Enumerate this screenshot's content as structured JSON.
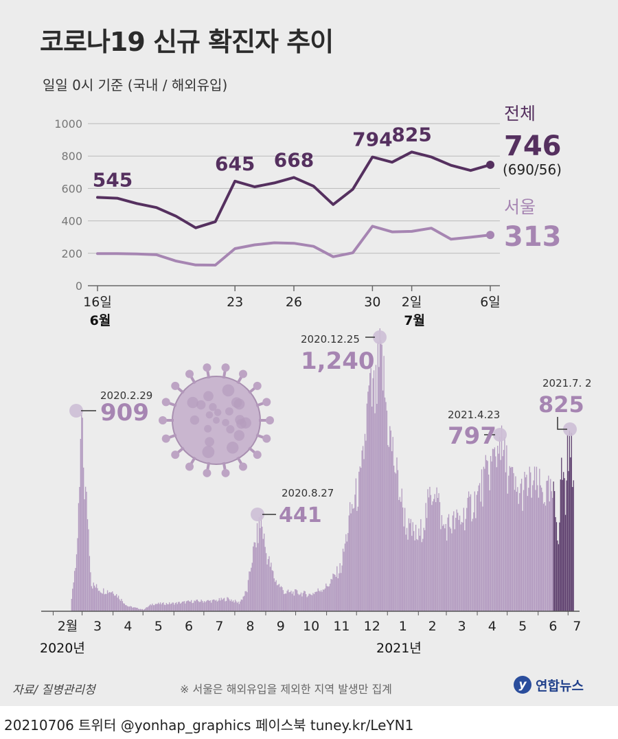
{
  "title": "코로나19 신규 확진자 추이",
  "subtitle": "일일 0시 기준 (국내 / 해외유입)",
  "source": "자료/ 질병관리청",
  "note": "※ 서울은 해외유입을 제외한 지역 발생만 집계",
  "logo": {
    "icon": "yonhap-logo-icon",
    "mark": "y",
    "name": "연합뉴스"
  },
  "credit": "20210706 트위터 @yonhap_graphics  페이스북 tuney.kr/LeYN1",
  "colors": {
    "total": "#55305f",
    "seoul": "#a685b2",
    "bars": "#b39bc0",
    "bars_recent": "#5e3f6e",
    "highlight": "#cdbfd6"
  },
  "chart_data": [
    {
      "type": "line",
      "ylim": [
        0,
        1000
      ],
      "yticks": [
        0,
        200,
        400,
        600,
        800,
        1000
      ],
      "x_tick_labels": [
        {
          "day": 16,
          "label": "16일"
        },
        {
          "day": 23,
          "label": "23"
        },
        {
          "day": 26,
          "label": "26"
        },
        {
          "day": 30,
          "label": "30"
        },
        {
          "day": 32,
          "label": "2일"
        },
        {
          "day": 36,
          "label": "6일"
        }
      ],
      "month_labels": [
        {
          "day": 16,
          "label": "6월"
        },
        {
          "day": 32,
          "label": "7월"
        }
      ],
      "dates": [
        "6.16",
        "6.17",
        "6.18",
        "6.19",
        "6.20",
        "6.21",
        "6.22",
        "6.23",
        "6.24",
        "6.25",
        "6.26",
        "6.27",
        "6.28",
        "6.29",
        "6.30",
        "7.1",
        "7.2",
        "7.3",
        "7.4",
        "7.5",
        "7.6"
      ],
      "series": [
        {
          "name": "전체",
          "values": [
            545,
            540,
            507,
            482,
            429,
            357,
            395,
            645,
            610,
            634,
            668,
            614,
            501,
            595,
            794,
            762,
            825,
            794,
            743,
            711,
            746
          ],
          "labels": [
            {
              "index": 0,
              "text": "545"
            },
            {
              "index": 7,
              "text": "645"
            },
            {
              "index": 10,
              "text": "668"
            },
            {
              "index": 14,
              "text": "794"
            },
            {
              "index": 16,
              "text": "825"
            }
          ],
          "end_value": "746",
          "end_detail": "(690/56)"
        },
        {
          "name": "서울",
          "values": [
            198,
            198,
            196,
            191,
            152,
            128,
            127,
            229,
            252,
            265,
            262,
            243,
            179,
            203,
            367,
            332,
            335,
            355,
            287,
            299,
            313
          ],
          "end_value": "313"
        }
      ]
    },
    {
      "type": "bar",
      "start": "2020-01-20",
      "end": "2021-07-06",
      "ylim": [
        0,
        1240
      ],
      "month_labels": [
        "2월",
        "3",
        "4",
        "5",
        "6",
        "7",
        "8",
        "9",
        "10",
        "11",
        "12",
        "1",
        "2",
        "3",
        "4",
        "5",
        "6",
        "7"
      ],
      "year_labels": [
        "2020년",
        "2021년"
      ],
      "recent_window": "2021-06-16 ~ 2021-07-06",
      "annotations": [
        {
          "date_label": "2020.2.29",
          "value": "909",
          "date": "2020-02-29"
        },
        {
          "date_label": "2020.8.27",
          "value": "441",
          "date": "2020-08-27"
        },
        {
          "date_label": "2020.12.25",
          "value": "1,240",
          "date": "2020-12-25"
        },
        {
          "date_label": "2021.4.23",
          "value": "797",
          "date": "2021-04-23"
        },
        {
          "date_label": "2021.7. 2",
          "value": "825",
          "date": "2021-07-02"
        }
      ],
      "anchors": [
        [
          "2020-01-20",
          1
        ],
        [
          "2020-02-18",
          1
        ],
        [
          "2020-02-22",
          200
        ],
        [
          "2020-02-25",
          300
        ],
        [
          "2020-02-29",
          909
        ],
        [
          "2020-03-03",
          600
        ],
        [
          "2020-03-06",
          480
        ],
        [
          "2020-03-10",
          130
        ],
        [
          "2020-03-20",
          100
        ],
        [
          "2020-04-01",
          95
        ],
        [
          "2020-04-15",
          25
        ],
        [
          "2020-05-01",
          8
        ],
        [
          "2020-05-10",
          35
        ],
        [
          "2020-06-01",
          38
        ],
        [
          "2020-06-20",
          48
        ],
        [
          "2020-07-10",
          50
        ],
        [
          "2020-07-25",
          60
        ],
        [
          "2020-08-05",
          40
        ],
        [
          "2020-08-13",
          100
        ],
        [
          "2020-08-18",
          260
        ],
        [
          "2020-08-27",
          441
        ],
        [
          "2020-09-01",
          280
        ],
        [
          "2020-09-10",
          150
        ],
        [
          "2020-09-20",
          90
        ],
        [
          "2020-10-01",
          90
        ],
        [
          "2020-10-15",
          80
        ],
        [
          "2020-11-01",
          120
        ],
        [
          "2020-11-15",
          210
        ],
        [
          "2020-11-25",
          480
        ],
        [
          "2020-12-05",
          620
        ],
        [
          "2020-12-13",
          1030
        ],
        [
          "2020-12-20",
          1020
        ],
        [
          "2020-12-25",
          1240
        ],
        [
          "2021-01-01",
          900
        ],
        [
          "2021-01-10",
          650
        ],
        [
          "2021-01-20",
          400
        ],
        [
          "2021-02-01",
          350
        ],
        [
          "2021-02-17",
          620
        ],
        [
          "2021-02-25",
          400
        ],
        [
          "2021-03-15",
          440
        ],
        [
          "2021-04-01",
          550
        ],
        [
          "2021-04-23",
          797
        ],
        [
          "2021-05-10",
          560
        ],
        [
          "2021-05-25",
          610
        ],
        [
          "2021-06-10",
          560
        ],
        [
          "2021-06-16",
          545
        ],
        [
          "2021-06-21",
          357
        ],
        [
          "2021-06-23",
          645
        ],
        [
          "2021-06-26",
          668
        ],
        [
          "2021-06-28",
          501
        ],
        [
          "2021-06-30",
          794
        ],
        [
          "2021-07-02",
          825
        ],
        [
          "2021-07-05",
          711
        ],
        [
          "2021-07-06",
          746
        ]
      ]
    }
  ]
}
